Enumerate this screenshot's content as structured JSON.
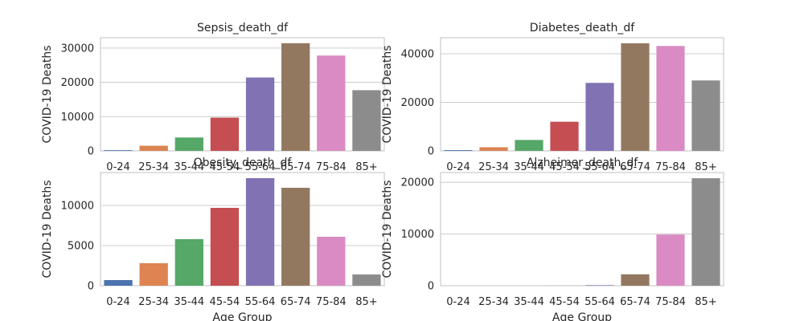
{
  "figure": {
    "categories": [
      "0-24",
      "25-34",
      "35-44",
      "45-54",
      "55-64",
      "65-74",
      "75-84",
      "85+"
    ],
    "bar_colors": [
      "#4c72b0",
      "#dd8452",
      "#55a868",
      "#c44e52",
      "#8172b3",
      "#937860",
      "#da8bc3",
      "#8c8c8c"
    ],
    "grid_color": "#cccccc",
    "frame_color": "#cccccc"
  },
  "chart_data": [
    {
      "type": "bar",
      "title": "Sepsis_death_df",
      "xlabel": "",
      "ylabel": "COVID-19 Deaths",
      "categories": [
        "0-24",
        "25-34",
        "35-44",
        "45-54",
        "55-64",
        "65-74",
        "75-84",
        "85+"
      ],
      "values": [
        200,
        1500,
        3900,
        9700,
        21400,
        31400,
        27800,
        17700
      ],
      "ylim": [
        0,
        33000
      ],
      "yticks": [
        0,
        10000,
        20000,
        30000
      ],
      "show_xticklabels": true,
      "grid": true
    },
    {
      "type": "bar",
      "title": "Diabetes_death_df",
      "xlabel": "",
      "ylabel": "COVID-19 Deaths",
      "categories": [
        "0-24",
        "25-34",
        "35-44",
        "45-54",
        "55-64",
        "65-74",
        "75-84",
        "85+"
      ],
      "values": [
        300,
        1500,
        4500,
        12000,
        28000,
        44300,
        43200,
        29000
      ],
      "ylim": [
        0,
        46600
      ],
      "yticks": [
        0,
        20000,
        40000
      ],
      "show_xticklabels": true,
      "grid": true
    },
    {
      "type": "bar",
      "title": "Obesity_death_df",
      "xlabel": "Age Group",
      "ylabel": "COVID-19 Deaths",
      "categories": [
        "0-24",
        "25-34",
        "35-44",
        "45-54",
        "55-64",
        "65-74",
        "75-84",
        "85+"
      ],
      "values": [
        700,
        2800,
        5800,
        9700,
        13400,
        12200,
        6100,
        1400
      ],
      "ylim": [
        0,
        14100
      ],
      "yticks": [
        0,
        5000,
        10000
      ],
      "show_xticklabels": true,
      "grid": true
    },
    {
      "type": "bar",
      "title": "Alzheimer_death_df",
      "xlabel": "Age Group",
      "ylabel": "COVID-19 Deaths",
      "categories": [
        "0-24",
        "25-34",
        "35-44",
        "45-54",
        "55-64",
        "65-74",
        "75-84",
        "85+"
      ],
      "values": [
        0,
        0,
        0,
        10,
        100,
        2200,
        9900,
        20800
      ],
      "ylim": [
        0,
        21900
      ],
      "yticks": [
        0,
        10000,
        20000
      ],
      "show_xticklabels": true,
      "grid": true
    }
  ]
}
